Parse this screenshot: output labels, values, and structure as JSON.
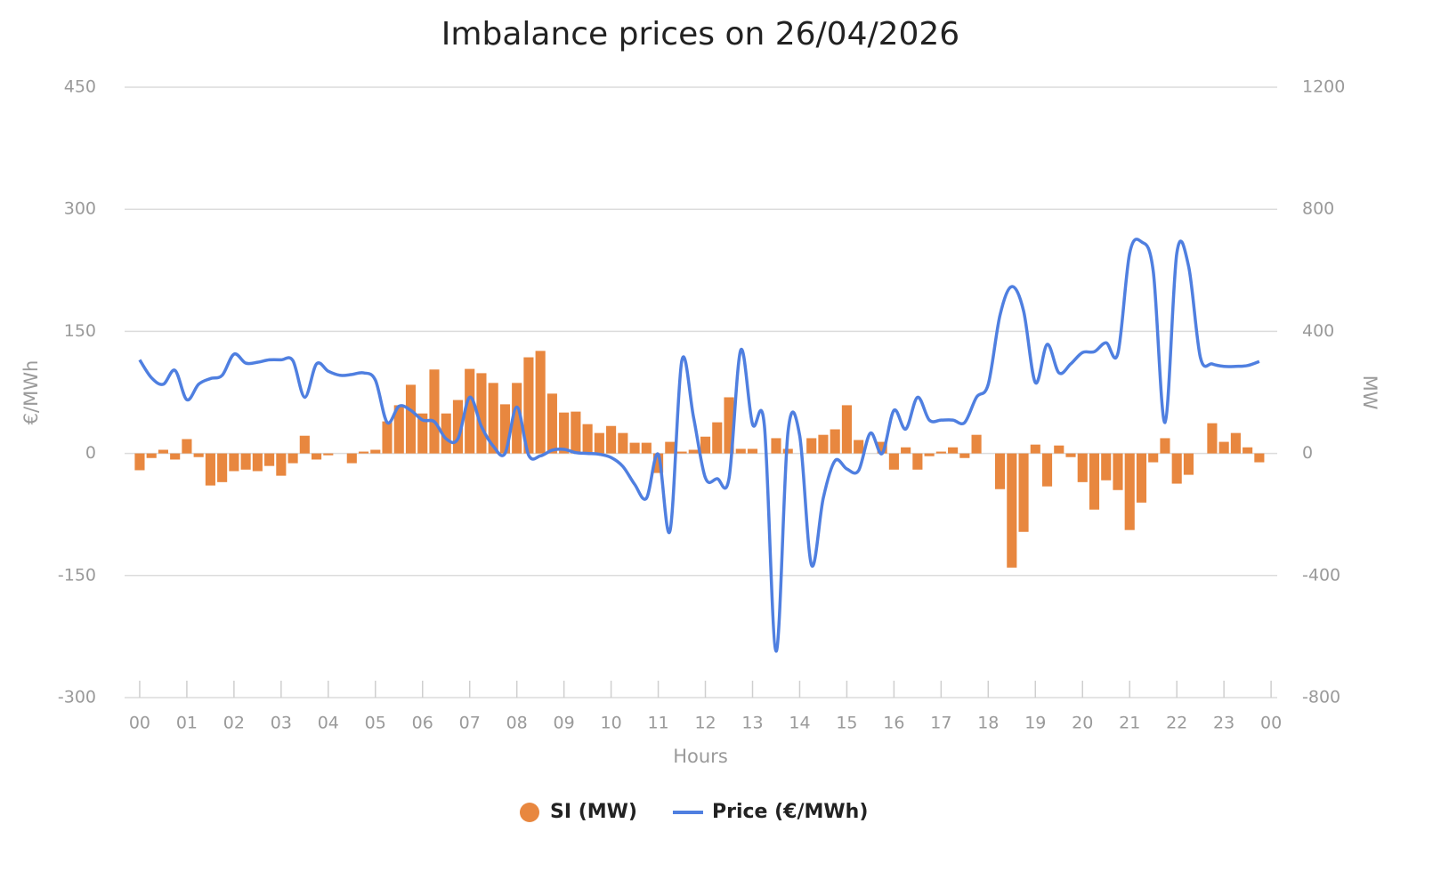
{
  "chart_data": {
    "type": "combo",
    "title": "Imbalance prices on 26/04/2026",
    "x_label": "Hours",
    "y_label": "€/MWh",
    "y2_label": "MW",
    "x": [
      0,
      0.25,
      0.5,
      0.75,
      1,
      1.25,
      1.5,
      1.75,
      2,
      2.25,
      2.5,
      2.75,
      3,
      3.25,
      3.5,
      3.75,
      4,
      4.25,
      4.5,
      4.75,
      5,
      5.25,
      5.5,
      5.75,
      6,
      6.25,
      6.5,
      6.75,
      7,
      7.25,
      7.5,
      7.75,
      8,
      8.25,
      8.5,
      8.75,
      9,
      9.25,
      9.5,
      9.75,
      10,
      10.25,
      10.5,
      10.75,
      11,
      11.25,
      11.5,
      11.75,
      12,
      12.25,
      12.5,
      12.75,
      13,
      13.25,
      13.5,
      13.75,
      14,
      14.25,
      14.5,
      14.75,
      15,
      15.25,
      15.5,
      15.75,
      16,
      16.25,
      16.5,
      16.75,
      17,
      17.25,
      17.5,
      17.75,
      18,
      18.25,
      18.5,
      18.75,
      19,
      19.25,
      19.5,
      19.75,
      20,
      20.25,
      20.5,
      20.75,
      21,
      21.25,
      21.5,
      21.75,
      22,
      22.25,
      22.5,
      22.75,
      23,
      23.25,
      23.5,
      23.75
    ],
    "xlim": [
      -0.32,
      24.13
    ],
    "xticks": [
      {
        "value": 0,
        "label": "00"
      },
      {
        "value": 1,
        "label": "01"
      },
      {
        "value": 2,
        "label": "02"
      },
      {
        "value": 3,
        "label": "03"
      },
      {
        "value": 4,
        "label": "04"
      },
      {
        "value": 5,
        "label": "05"
      },
      {
        "value": 6,
        "label": "06"
      },
      {
        "value": 7,
        "label": "07"
      },
      {
        "value": 8,
        "label": "08"
      },
      {
        "value": 9,
        "label": "09"
      },
      10,
      11,
      12,
      13,
      14,
      15,
      16,
      17,
      18,
      19,
      20,
      21,
      22,
      23,
      {
        "value": 24,
        "label": "00"
      }
    ],
    "ylim": [
      -300,
      450
    ],
    "yticks": [
      -300,
      -150,
      0,
      150,
      300,
      450
    ],
    "y2lim": [
      -800,
      1200
    ],
    "y2ticks": [
      -800,
      -400,
      0,
      400,
      800,
      1200
    ],
    "grid": true,
    "legend": "bottom",
    "series": [
      {
        "name": "SI (MW)",
        "type": "bar",
        "axis": "y2",
        "color": "#e8873f",
        "values": [
          -55,
          -15,
          12,
          -20,
          47,
          -12,
          -105,
          -94,
          -58,
          -53,
          -58,
          -41,
          -73,
          -32,
          58,
          -20,
          -6,
          0,
          -32,
          6,
          12,
          105,
          158,
          225,
          131,
          275,
          131,
          175,
          277,
          263,
          231,
          161,
          231,
          315,
          336,
          196,
          134,
          137,
          96,
          67,
          90,
          67,
          35,
          35,
          -64,
          38,
          6,
          12,
          55,
          102,
          184,
          15,
          15,
          0,
          50,
          15,
          0,
          50,
          61,
          79,
          158,
          44,
          0,
          38,
          -53,
          20,
          -53,
          -9,
          6,
          20,
          -15,
          61,
          0,
          -117,
          -374,
          -257,
          29,
          -108,
          26,
          -12,
          -94,
          -184,
          -88,
          -120,
          -251,
          -161,
          -29,
          50,
          -99,
          -70,
          0,
          99,
          38,
          67,
          20,
          -29
        ]
      },
      {
        "name": "Price (€/MWh)",
        "type": "line",
        "axis": "y",
        "color": "#4f7fe0",
        "values": [
          115,
          93,
          85,
          102,
          66,
          85,
          92,
          96,
          122,
          111,
          112,
          115,
          115,
          114,
          69,
          110,
          101,
          96,
          97,
          99,
          90,
          38,
          58,
          53,
          41,
          39,
          18,
          18,
          69,
          33,
          9,
          0,
          57,
          -2,
          -3,
          4,
          5,
          1,
          0,
          -1,
          -5,
          -16,
          -38,
          -55,
          -1,
          -95,
          114,
          44,
          -30,
          -31,
          -31,
          127,
          36,
          35,
          -243,
          25,
          22,
          -137,
          -55,
          -9,
          -19,
          -21,
          25,
          0,
          53,
          30,
          69,
          41,
          41,
          41,
          38,
          69,
          85,
          170,
          205,
          175,
          87,
          134,
          99,
          110,
          124,
          125,
          136,
          123,
          246,
          260,
          224,
          38,
          246,
          230,
          118,
          110,
          107,
          107,
          108,
          113
        ]
      }
    ]
  }
}
